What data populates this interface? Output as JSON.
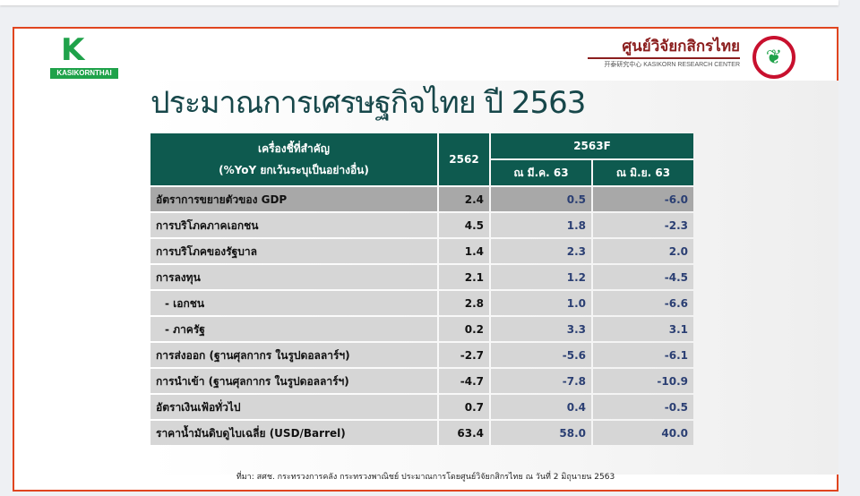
{
  "logos": {
    "left_text": "KASIKORNTHAI",
    "right_th": "ศูนย์วิจัยกสิกรไทย",
    "right_en": "开泰研究中心 KASIKORN RESEARCH CENTER"
  },
  "title": "ประมาณการเศรษฐกิจไทย ปี 2563",
  "table": {
    "header_indicator": "เครื่องชี้ที่สำคัญ",
    "header_unit": "(%YoY ยกเว้นระบุเป็นอย่างอื่น)",
    "header_2562": "2562",
    "header_2563f": "2563F",
    "header_mar": "ณ มี.ค. 63",
    "header_jun": "ณ มิ.ย. 63",
    "rows": [
      {
        "label": "อัตราการขยายตัวของ GDP",
        "y2562": "2.4",
        "mar": "0.5",
        "jun": "-6.0"
      },
      {
        "label": "การบริโภคภาคเอกชน",
        "y2562": "4.5",
        "mar": "1.8",
        "jun": "-2.3"
      },
      {
        "label": "การบริโภคของรัฐบาล",
        "y2562": "1.4",
        "mar": "2.3",
        "jun": "2.0"
      },
      {
        "label": "การลงทุน",
        "y2562": "2.1",
        "mar": "1.2",
        "jun": "-4.5"
      },
      {
        "label": "  - เอกชน",
        "y2562": "2.8",
        "mar": "1.0",
        "jun": "-6.6"
      },
      {
        "label": "  - ภาครัฐ",
        "y2562": "0.2",
        "mar": "3.3",
        "jun": "3.1"
      },
      {
        "label": "การส่งออก (ฐานศุลกากร ในรูปดอลลาร์ฯ)",
        "y2562": "-2.7",
        "mar": "-5.6",
        "jun": "-6.1"
      },
      {
        "label": "การนำเข้า (ฐานศุลกากร ในรูปดอลลาร์ฯ)",
        "y2562": "-4.7",
        "mar": "-7.8",
        "jun": "-10.9"
      },
      {
        "label": "อัตราเงินเฟ้อทั่วไป",
        "y2562": "0.7",
        "mar": "0.4",
        "jun": "-0.5"
      },
      {
        "label": "ราคาน้ำมันดิบดูไบเฉลี่ย (USD/Barrel)",
        "y2562": "63.4",
        "mar": "58.0",
        "jun": "40.0"
      }
    ]
  },
  "source": "ที่มา: สศช. กระทรวงการคลัง กระทรวงพาณิชย์ ประมาณการโดยศูนย์วิจัยกสิกรไทย ณ วันที่ 2 มิถุนายน 2563"
}
